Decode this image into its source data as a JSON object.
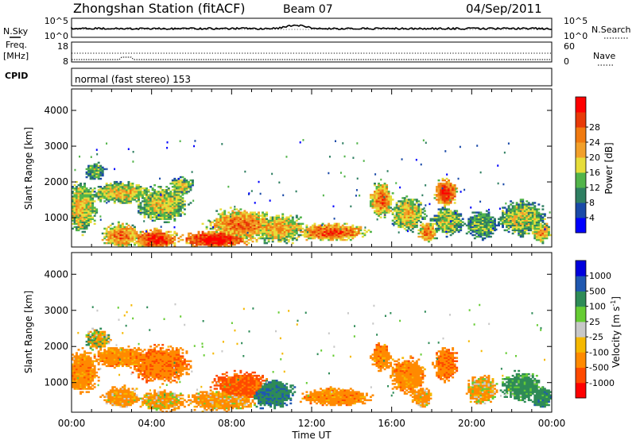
{
  "header": {
    "station": "Zhongshan Station (fitACF)",
    "beam": "Beam 07",
    "date": "04/Sep/2011"
  },
  "mode_label": "normal (fast stereo) 153",
  "status_panels": {
    "nsky": {
      "left_label": "N.Sky",
      "left_ticks": [
        "10^5",
        "10^0"
      ],
      "right_label": "N.Search",
      "right_ticks": [
        "10^5",
        "10^0"
      ]
    },
    "freq": {
      "left_label_1": "Freq.",
      "left_label_2": "[MHz]",
      "left_ticks": [
        "18",
        "8"
      ],
      "right_label": "Nave",
      "right_ticks": [
        "60",
        "0"
      ]
    },
    "cpid_label": "CPID"
  },
  "colors": {
    "power_scale": [
      "#0000ff",
      "#1a4aa8",
      "#2f7f62",
      "#52b44a",
      "#e6dd3a",
      "#f2a02a",
      "#f07a10",
      "#e83a08",
      "#ff0000"
    ],
    "velocity_scale": [
      "#ff0000",
      "#ff4a00",
      "#ff8a00",
      "#f5b800",
      "#c8c8c8",
      "#66cc33",
      "#2e8b57",
      "#1f58b0",
      "#0000dd"
    ]
  },
  "chart_data": [
    {
      "type": "heatmap",
      "name": "power",
      "xlabel": "",
      "ylabel": "Slant Range [km]",
      "x_ticks": [
        "00:00",
        "04:00",
        "08:00",
        "12:00",
        "16:00",
        "20:00",
        "00:00"
      ],
      "y_ticks": [
        "1000",
        "2000",
        "3000",
        "4000"
      ],
      "ylim": [
        180,
        4600
      ],
      "xlim_hours": [
        0,
        24
      ],
      "colorbar": {
        "label": "Power [dB]",
        "ticks": [
          "4",
          "8",
          "12",
          "16",
          "20",
          "24",
          "28"
        ],
        "range": [
          0,
          30
        ]
      },
      "blobs": [
        {
          "t": 0.5,
          "r": 1300,
          "dt": 0.8,
          "dr": 700,
          "v": 14
        },
        {
          "t": 1.2,
          "r": 2300,
          "dt": 0.5,
          "dr": 250,
          "v": 10
        },
        {
          "t": 2.5,
          "r": 1700,
          "dt": 1.5,
          "dr": 300,
          "v": 14
        },
        {
          "t": 2.5,
          "r": 500,
          "dt": 1.0,
          "dr": 350,
          "v": 18
        },
        {
          "t": 4.2,
          "r": 400,
          "dt": 1.2,
          "dr": 300,
          "v": 22
        },
        {
          "t": 4.5,
          "r": 1400,
          "dt": 1.3,
          "dr": 500,
          "v": 13
        },
        {
          "t": 5.5,
          "r": 1900,
          "dt": 0.6,
          "dr": 250,
          "v": 12
        },
        {
          "t": 7.2,
          "r": 400,
          "dt": 1.8,
          "dr": 250,
          "v": 24
        },
        {
          "t": 8.5,
          "r": 800,
          "dt": 1.8,
          "dr": 450,
          "v": 18
        },
        {
          "t": 10.3,
          "r": 700,
          "dt": 1.5,
          "dr": 400,
          "v": 15
        },
        {
          "t": 13.0,
          "r": 600,
          "dt": 1.8,
          "dr": 250,
          "v": 20
        },
        {
          "t": 15.5,
          "r": 1500,
          "dt": 0.6,
          "dr": 500,
          "v": 18
        },
        {
          "t": 16.8,
          "r": 1100,
          "dt": 0.8,
          "dr": 500,
          "v": 14
        },
        {
          "t": 17.8,
          "r": 600,
          "dt": 0.5,
          "dr": 300,
          "v": 18
        },
        {
          "t": 18.7,
          "r": 1700,
          "dt": 0.6,
          "dr": 400,
          "v": 22
        },
        {
          "t": 18.8,
          "r": 900,
          "dt": 0.8,
          "dr": 400,
          "v": 12
        },
        {
          "t": 20.5,
          "r": 800,
          "dt": 0.8,
          "dr": 400,
          "v": 10
        },
        {
          "t": 22.5,
          "r": 1000,
          "dt": 1.2,
          "dr": 500,
          "v": 12
        },
        {
          "t": 23.5,
          "r": 600,
          "dt": 0.5,
          "dr": 300,
          "v": 16
        }
      ]
    },
    {
      "type": "heatmap",
      "name": "velocity",
      "xlabel": "Time UT",
      "ylabel": "Slant Range [km]",
      "x_ticks": [
        "00:00",
        "04:00",
        "08:00",
        "12:00",
        "16:00",
        "20:00",
        "00:00"
      ],
      "y_ticks": [
        "1000",
        "2000",
        "3000",
        "4000"
      ],
      "ylim": [
        180,
        4600
      ],
      "xlim_hours": [
        0,
        24
      ],
      "colorbar": {
        "label": "Velocity [m s^-1]",
        "ticks": [
          "-1000",
          "-500",
          "-100",
          "-25",
          "25",
          "100",
          "500",
          "1000"
        ]
      },
      "blobs": [
        {
          "t": 0.5,
          "r": 1300,
          "dt": 0.8,
          "dr": 600,
          "v": -300
        },
        {
          "t": 1.3,
          "r": 2200,
          "dt": 0.6,
          "dr": 300,
          "v": 0
        },
        {
          "t": 2.5,
          "r": 1700,
          "dt": 1.5,
          "dr": 300,
          "v": -300
        },
        {
          "t": 2.5,
          "r": 600,
          "dt": 1.0,
          "dr": 300,
          "v": -200
        },
        {
          "t": 4.5,
          "r": 1500,
          "dt": 1.5,
          "dr": 500,
          "v": -400
        },
        {
          "t": 4.5,
          "r": 500,
          "dt": 1.2,
          "dr": 300,
          "v": -150
        },
        {
          "t": 7.5,
          "r": 500,
          "dt": 1.8,
          "dr": 300,
          "v": -200
        },
        {
          "t": 8.5,
          "r": 900,
          "dt": 1.5,
          "dr": 400,
          "v": -600
        },
        {
          "t": 10.0,
          "r": 700,
          "dt": 1.2,
          "dr": 400,
          "v": 400
        },
        {
          "t": 13.2,
          "r": 600,
          "dt": 1.8,
          "dr": 250,
          "v": -300
        },
        {
          "t": 15.5,
          "r": 1700,
          "dt": 0.5,
          "dr": 400,
          "v": -300
        },
        {
          "t": 16.8,
          "r": 1200,
          "dt": 0.9,
          "dr": 500,
          "v": -300
        },
        {
          "t": 17.5,
          "r": 600,
          "dt": 0.5,
          "dr": 300,
          "v": -200
        },
        {
          "t": 18.7,
          "r": 1500,
          "dt": 0.6,
          "dr": 500,
          "v": -400
        },
        {
          "t": 20.5,
          "r": 800,
          "dt": 0.8,
          "dr": 400,
          "v": -150
        },
        {
          "t": 22.5,
          "r": 900,
          "dt": 1.0,
          "dr": 400,
          "v": 250
        },
        {
          "t": 23.5,
          "r": 600,
          "dt": 0.5,
          "dr": 300,
          "v": 300
        }
      ]
    }
  ]
}
